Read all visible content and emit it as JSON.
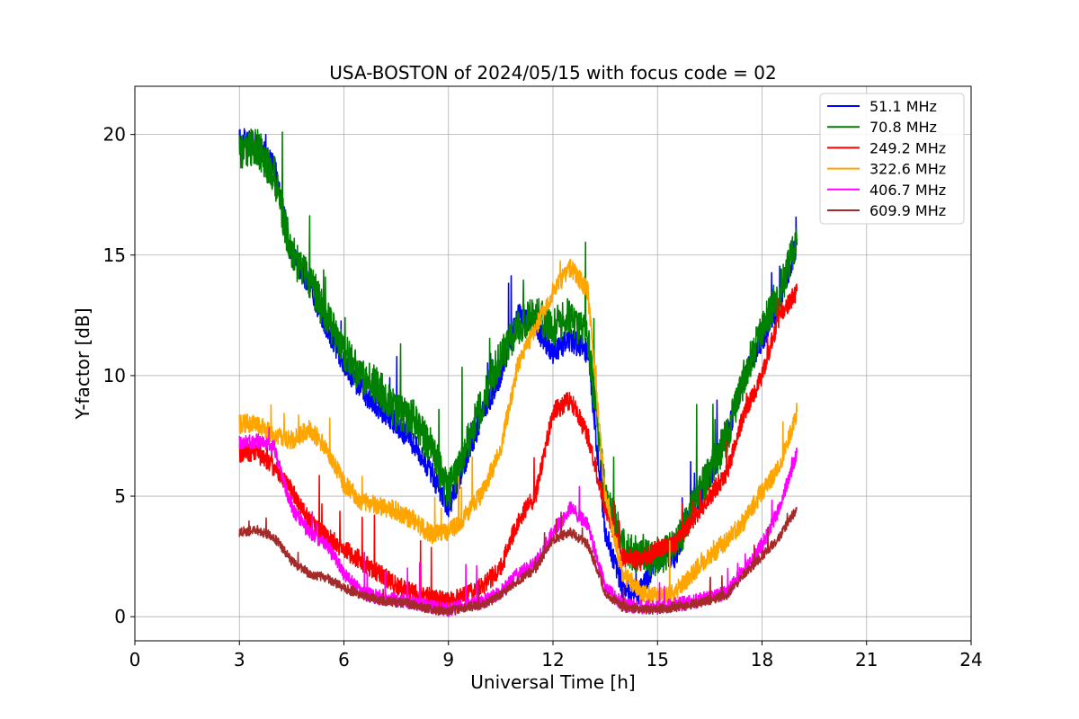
{
  "chart_data": {
    "type": "line",
    "title": "USA-BOSTON of 2024/05/15 with focus code = 02",
    "xlabel": "Universal Time [h]",
    "ylabel": "Y-factor [dB]",
    "xlim": [
      0,
      24
    ],
    "ylim": [
      -1,
      22
    ],
    "xticks": [
      0,
      3,
      6,
      9,
      12,
      15,
      18,
      21,
      24
    ],
    "yticks": [
      0,
      5,
      10,
      15,
      20
    ],
    "grid": true,
    "legend_position": "top-right",
    "series": [
      {
        "name": "  51.1 MHz",
        "color": "#0000ff",
        "x": [
          3.0,
          3.5,
          4.0,
          4.5,
          5.0,
          5.5,
          6.0,
          6.5,
          7.0,
          7.5,
          8.0,
          8.5,
          9.0,
          9.5,
          10.0,
          10.5,
          11.0,
          11.5,
          12.0,
          12.5,
          13.0,
          13.5,
          14.0,
          14.5,
          15.0,
          15.5,
          16.0,
          16.5,
          17.0,
          17.5,
          18.0,
          18.5,
          19.0
        ],
        "y": [
          19.8,
          19.6,
          18.8,
          15.0,
          13.8,
          12.0,
          10.5,
          9.4,
          8.7,
          8.0,
          7.2,
          6.0,
          4.5,
          6.5,
          8.5,
          10.0,
          12.5,
          12.0,
          11.0,
          11.5,
          11.0,
          3.5,
          1.2,
          1.0,
          2.5,
          2.5,
          4.5,
          5.8,
          7.5,
          10.0,
          11.5,
          13.0,
          15.5
        ],
        "noise": 0.5
      },
      {
        "name": "  70.8 MHz",
        "color": "#008000",
        "x": [
          3.0,
          3.5,
          4.0,
          4.5,
          5.0,
          5.5,
          6.0,
          6.5,
          7.0,
          7.5,
          8.0,
          8.5,
          9.0,
          9.5,
          10.0,
          10.5,
          11.0,
          11.5,
          12.0,
          12.5,
          13.0,
          13.5,
          14.0,
          14.5,
          15.0,
          15.5,
          16.0,
          16.5,
          17.0,
          17.5,
          18.0,
          18.5,
          19.0
        ],
        "y": [
          19.3,
          19.5,
          18.3,
          15.0,
          14.0,
          12.5,
          11.0,
          10.0,
          9.5,
          8.5,
          8.2,
          7.0,
          5.2,
          7.0,
          9.0,
          10.8,
          12.0,
          12.5,
          12.0,
          12.5,
          11.5,
          5.0,
          3.0,
          2.5,
          2.5,
          2.8,
          4.5,
          6.0,
          7.5,
          10.0,
          12.0,
          13.5,
          15.5
        ],
        "noise": 0.8
      },
      {
        "name": "  249.2 MHz",
        "color": "#ff0000",
        "x": [
          3.0,
          3.5,
          4.0,
          4.5,
          5.0,
          5.5,
          6.0,
          6.5,
          7.0,
          7.5,
          8.0,
          8.5,
          9.0,
          9.5,
          10.0,
          10.5,
          11.0,
          11.5,
          12.0,
          12.5,
          13.0,
          13.5,
          14.0,
          14.5,
          15.0,
          15.5,
          16.0,
          16.5,
          17.0,
          17.5,
          18.0,
          18.5,
          19.0
        ],
        "y": [
          6.8,
          6.8,
          6.2,
          5.2,
          4.0,
          3.3,
          2.8,
          2.3,
          1.8,
          1.3,
          1.0,
          0.8,
          0.6,
          0.9,
          1.3,
          2.0,
          4.0,
          5.0,
          8.5,
          9.0,
          7.5,
          4.5,
          2.5,
          2.3,
          2.8,
          3.0,
          4.0,
          5.0,
          6.0,
          8.5,
          10.0,
          12.5,
          13.5
        ],
        "noise": 0.4
      },
      {
        "name": "  322.6 MHz",
        "color": "#ffa500",
        "x": [
          3.0,
          3.5,
          4.0,
          4.5,
          5.0,
          5.5,
          6.0,
          6.5,
          7.0,
          7.5,
          8.0,
          8.5,
          9.0,
          9.5,
          10.0,
          10.5,
          11.0,
          11.5,
          12.0,
          12.5,
          13.0,
          13.5,
          14.0,
          14.5,
          15.0,
          15.5,
          16.0,
          16.5,
          17.0,
          17.5,
          18.0,
          18.5,
          19.0
        ],
        "y": [
          8.0,
          8.0,
          7.5,
          7.3,
          7.8,
          7.0,
          5.5,
          4.8,
          4.6,
          4.4,
          4.0,
          3.4,
          3.5,
          4.2,
          5.2,
          7.0,
          10.5,
          12.0,
          13.5,
          14.5,
          13.5,
          5.0,
          1.8,
          1.0,
          0.8,
          1.0,
          1.8,
          2.5,
          3.2,
          4.0,
          5.2,
          6.2,
          8.5
        ],
        "noise": 0.4
      },
      {
        "name": "  406.7 MHz",
        "color": "#ff00ff",
        "x": [
          3.0,
          3.5,
          4.0,
          4.5,
          5.0,
          5.5,
          6.0,
          6.5,
          7.0,
          7.5,
          8.0,
          8.5,
          9.0,
          9.5,
          10.0,
          10.5,
          11.0,
          11.5,
          12.0,
          12.5,
          13.0,
          13.5,
          14.0,
          14.5,
          15.0,
          15.5,
          16.0,
          16.5,
          17.0,
          17.5,
          18.0,
          18.5,
          19.0
        ],
        "y": [
          7.2,
          7.3,
          7.0,
          4.5,
          3.5,
          3.0,
          1.8,
          1.0,
          0.8,
          0.7,
          0.6,
          0.4,
          0.3,
          0.5,
          0.6,
          1.0,
          1.8,
          2.2,
          3.5,
          4.5,
          3.8,
          1.2,
          0.5,
          0.4,
          0.4,
          0.5,
          0.6,
          0.8,
          1.0,
          2.0,
          3.0,
          4.5,
          6.8
        ],
        "noise": 0.3
      },
      {
        "name": "  609.9 MHz",
        "color": "#a52a2a",
        "x": [
          3.0,
          3.5,
          4.0,
          4.5,
          5.0,
          5.5,
          6.0,
          6.5,
          7.0,
          7.5,
          8.0,
          8.5,
          9.0,
          9.5,
          10.0,
          10.5,
          11.0,
          11.5,
          12.0,
          12.5,
          13.0,
          13.5,
          14.0,
          14.5,
          15.0,
          15.5,
          16.0,
          16.5,
          17.0,
          17.5,
          18.0,
          18.5,
          19.0
        ],
        "y": [
          3.5,
          3.6,
          3.3,
          2.3,
          1.8,
          1.6,
          1.2,
          0.9,
          0.7,
          0.6,
          0.5,
          0.3,
          0.2,
          0.4,
          0.5,
          0.9,
          1.5,
          2.0,
          3.2,
          3.5,
          3.0,
          1.0,
          0.4,
          0.3,
          0.3,
          0.4,
          0.5,
          0.7,
          0.9,
          1.8,
          2.5,
          3.3,
          4.5
        ],
        "noise": 0.2
      }
    ]
  }
}
